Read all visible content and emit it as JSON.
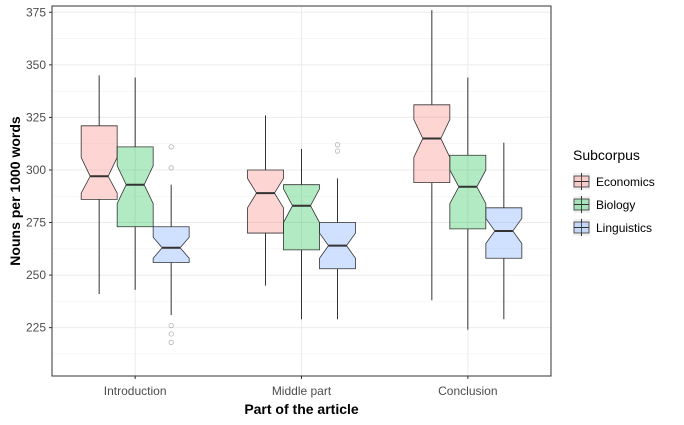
{
  "chart_data": {
    "type": "boxplot",
    "notched": true,
    "title": "",
    "xlabel": "Part of the article",
    "ylabel": "Nouns per 1000 words",
    "ylim": [
      202,
      378
    ],
    "yticks": [
      225,
      250,
      275,
      300,
      325,
      350,
      375
    ],
    "categories": [
      "Introduction",
      "Middle part",
      "Conclusion"
    ],
    "legend": {
      "title": "Subcorpus",
      "position": "right"
    },
    "grid": true,
    "series": [
      {
        "name": "Economics",
        "color": "#f8766d",
        "boxes": [
          {
            "min": 241,
            "q1": 286,
            "median": 297,
            "q3": 321,
            "max": 345,
            "notch_low": 289,
            "notch_high": 306,
            "outliers": []
          },
          {
            "min": 245,
            "q1": 270,
            "median": 289,
            "q3": 300,
            "max": 326,
            "notch_low": 282,
            "notch_high": 296,
            "outliers": []
          },
          {
            "min": 238,
            "q1": 294,
            "median": 315,
            "q3": 331,
            "max": 376,
            "notch_low": 306,
            "notch_high": 324,
            "outliers": []
          }
        ]
      },
      {
        "name": "Biology",
        "color": "#00ba38",
        "boxes": [
          {
            "min": 243,
            "q1": 273,
            "median": 293,
            "q3": 311,
            "max": 344,
            "notch_low": 284,
            "notch_high": 302,
            "outliers": []
          },
          {
            "min": 229,
            "q1": 262,
            "median": 283,
            "q3": 293,
            "max": 310,
            "notch_low": 275,
            "notch_high": 291,
            "outliers": []
          },
          {
            "min": 224,
            "q1": 272,
            "median": 292,
            "q3": 307,
            "max": 344,
            "notch_low": 284,
            "notch_high": 300,
            "outliers": []
          }
        ]
      },
      {
        "name": "Linguistics",
        "color": "#619cff",
        "boxes": [
          {
            "min": 231,
            "q1": 256,
            "median": 263,
            "q3": 273,
            "max": 293,
            "notch_low": 258,
            "notch_high": 268,
            "outliers": [
              218,
              222,
              226,
              301,
              311
            ]
          },
          {
            "min": 229,
            "q1": 253,
            "median": 264,
            "q3": 275,
            "max": 296,
            "notch_low": 258,
            "notch_high": 270,
            "outliers": [
              309,
              312
            ]
          },
          {
            "min": 229,
            "q1": 258,
            "median": 271,
            "q3": 282,
            "max": 313,
            "notch_low": 265,
            "notch_high": 277,
            "outliers": []
          }
        ]
      }
    ]
  }
}
